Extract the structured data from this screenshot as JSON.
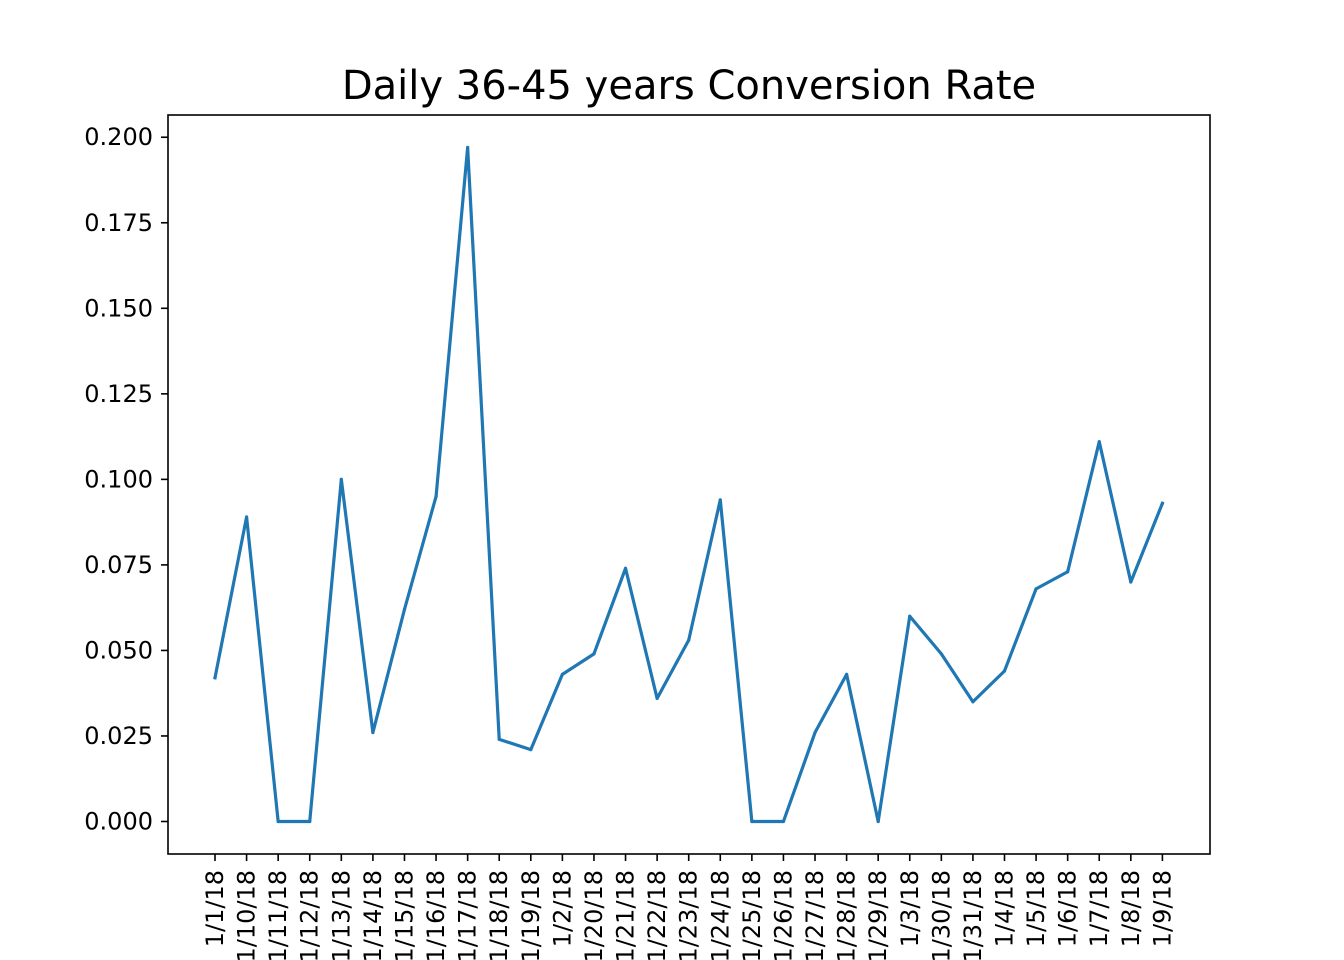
{
  "chart_data": {
    "type": "line",
    "title": "Daily 36-45 years Conversion Rate",
    "xlabel": "",
    "ylabel": "",
    "ylim": [
      -0.0095,
      0.2065
    ],
    "yticks": [
      "0.000",
      "0.025",
      "0.050",
      "0.075",
      "0.100",
      "0.125",
      "0.150",
      "0.175",
      "0.200"
    ],
    "ytick_values": [
      0,
      0.025,
      0.05,
      0.075,
      0.1,
      0.125,
      0.15,
      0.175,
      0.2
    ],
    "categories": [
      "1/1/18",
      "1/10/18",
      "1/11/18",
      "1/12/18",
      "1/13/18",
      "1/14/18",
      "1/15/18",
      "1/16/18",
      "1/17/18",
      "1/18/18",
      "1/19/18",
      "1/2/18",
      "1/20/18",
      "1/21/18",
      "1/22/18",
      "1/23/18",
      "1/24/18",
      "1/25/18",
      "1/26/18",
      "1/27/18",
      "1/28/18",
      "1/29/18",
      "1/3/18",
      "1/30/18",
      "1/31/18",
      "1/4/18",
      "1/5/18",
      "1/6/18",
      "1/7/18",
      "1/8/18",
      "1/9/18"
    ],
    "values": [
      0.042,
      0.089,
      0.0,
      0.0,
      0.1,
      0.026,
      0.062,
      0.095,
      0.197,
      0.024,
      0.021,
      0.043,
      0.049,
      0.074,
      0.036,
      0.053,
      0.094,
      0.0,
      0.0,
      0.026,
      0.043,
      0.0,
      0.06,
      0.049,
      0.035,
      0.044,
      0.068,
      0.073,
      0.111,
      0.07,
      0.093
    ],
    "series_color": "#1f77b4",
    "grid": false,
    "legend": "none"
  }
}
